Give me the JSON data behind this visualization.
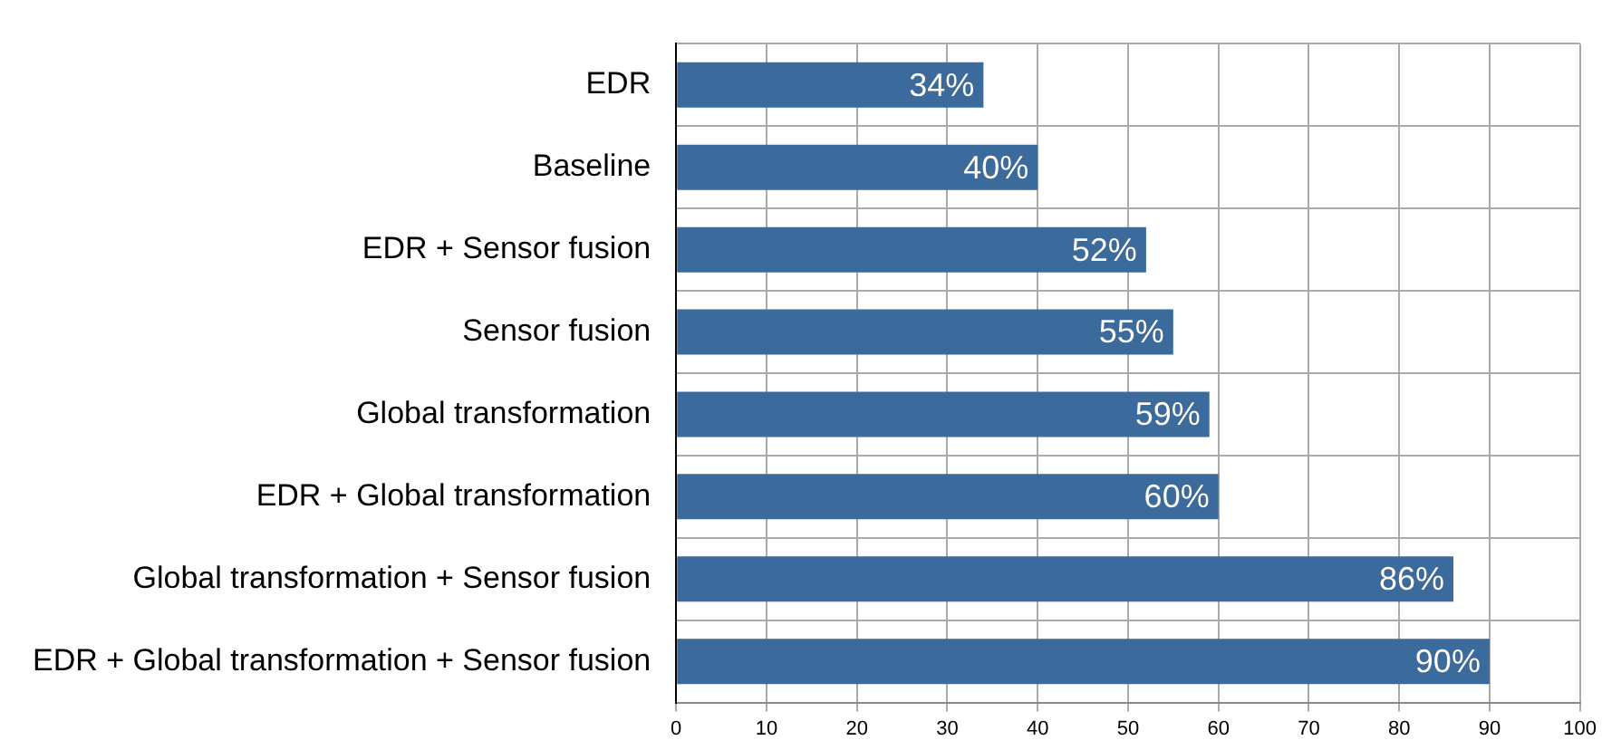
{
  "chart_data": {
    "type": "bar",
    "orientation": "horizontal",
    "categories": [
      "EDR",
      "Baseline",
      "EDR + Sensor fusion",
      "Sensor fusion",
      "Global transformation",
      "EDR + Global transformation",
      "Global transformation + Sensor fusion",
      "EDR + Global transformation + Sensor fusion"
    ],
    "values": [
      34,
      40,
      52,
      55,
      59,
      60,
      86,
      90
    ],
    "value_labels": [
      "34%",
      "40%",
      "52%",
      "55%",
      "59%",
      "60%",
      "86%",
      "90%"
    ],
    "color": "#3b6a9c",
    "xlim": [
      0,
      100
    ],
    "xticks": [
      0,
      10,
      20,
      30,
      40,
      50,
      60,
      70,
      80,
      90,
      100
    ],
    "grid": true,
    "legend": false
  }
}
